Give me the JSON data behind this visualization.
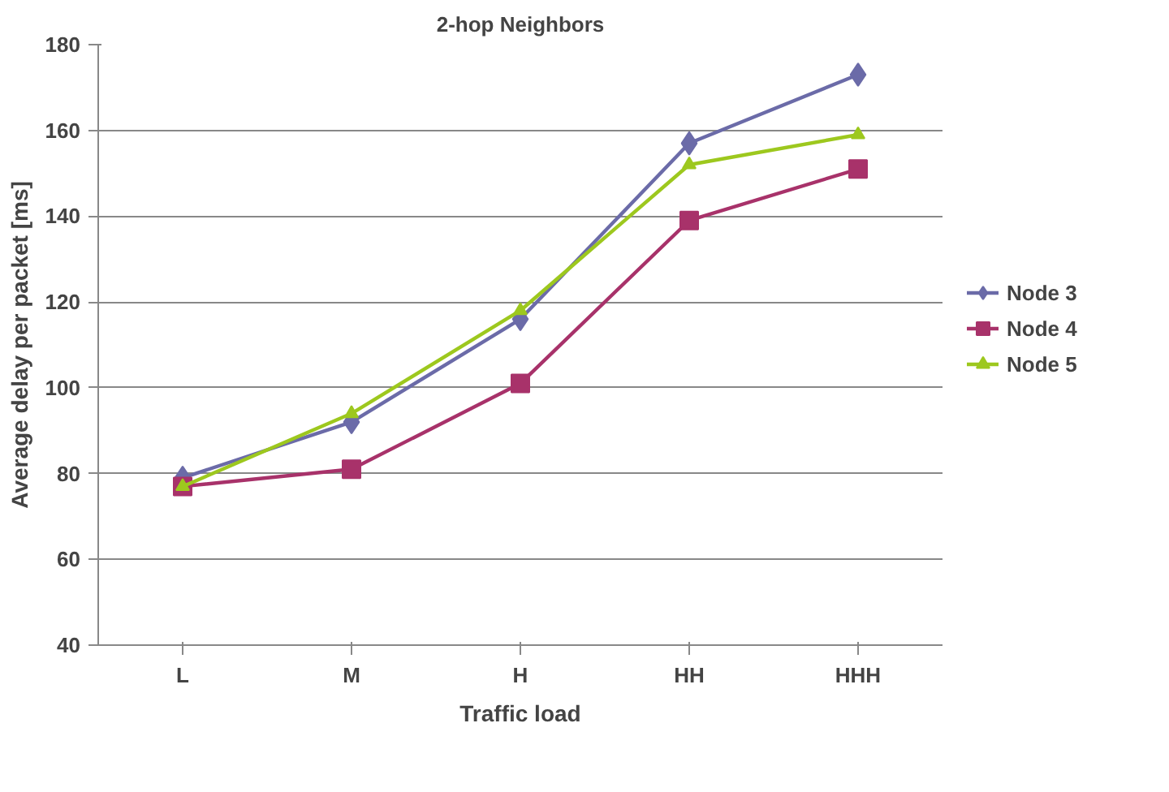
{
  "chart_data": {
    "type": "line",
    "title": "2-hop Neighbors",
    "xlabel": "Traffic load",
    "ylabel": "Average delay per packet [ms]",
    "categories": [
      "L",
      "M",
      "H",
      "HH",
      "HHH"
    ],
    "series": [
      {
        "name": "Node 3",
        "color": "#6b6ba8",
        "marker": "diamond",
        "values": [
          79,
          92,
          116,
          157,
          173
        ]
      },
      {
        "name": "Node 4",
        "color": "#a8326a",
        "marker": "square",
        "values": [
          77,
          81,
          101,
          139,
          151
        ]
      },
      {
        "name": "Node 5",
        "color": "#9dc81e",
        "marker": "triangle",
        "values": [
          77,
          94,
          118,
          152,
          159
        ]
      }
    ],
    "ylim": [
      40,
      180
    ],
    "yticks": [
      40,
      60,
      80,
      100,
      120,
      140,
      160,
      180
    ],
    "grid": "y",
    "legend": "right"
  }
}
